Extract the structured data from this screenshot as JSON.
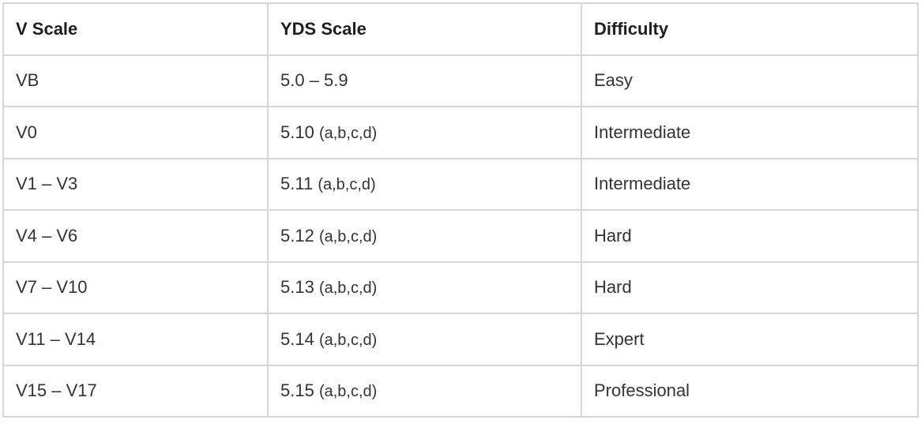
{
  "table": {
    "headers": [
      "V Scale",
      "YDS Scale",
      "Difficulty"
    ],
    "rows": [
      {
        "v": "VB",
        "yds": "5.0 – 5.9",
        "yds_suffix": "",
        "difficulty": "Easy"
      },
      {
        "v": "V0",
        "yds": "5.10",
        "yds_suffix": "(a,b,c,d)",
        "difficulty": "Intermediate"
      },
      {
        "v": "V1 – V3",
        "yds": "5.11",
        "yds_suffix": "(a,b,c,d)",
        "difficulty": "Intermediate"
      },
      {
        "v": "V4 – V6",
        "yds": "5.12",
        "yds_suffix": "(a,b,c,d)",
        "difficulty": "Hard"
      },
      {
        "v": "V7 – V10",
        "yds": "5.13",
        "yds_suffix": "(a,b,c,d)",
        "difficulty": "Hard"
      },
      {
        "v": "V11 – V14",
        "yds": "5.14",
        "yds_suffix": "(a,b,c,d)",
        "difficulty": "Expert"
      },
      {
        "v": "V15 – V17",
        "yds": "5.15",
        "yds_suffix": "(a,b,c,d)",
        "difficulty": "Professional"
      }
    ]
  }
}
